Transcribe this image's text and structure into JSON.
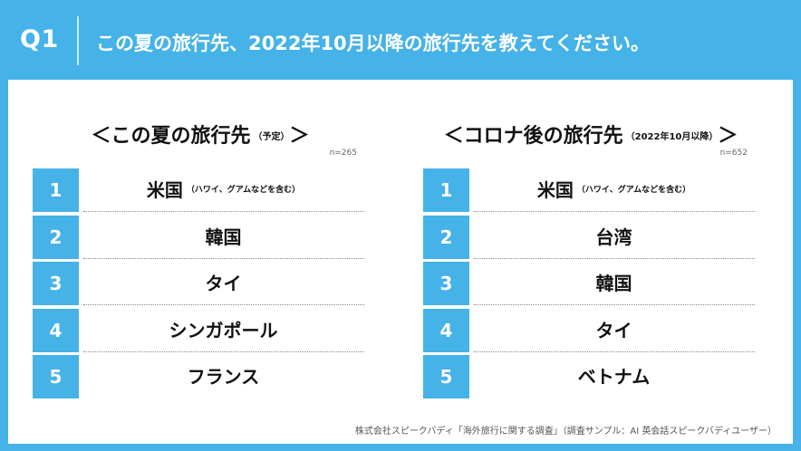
{
  "header": {
    "q_label": "Q1",
    "question": "この夏の旅行先、2022年10月以降の旅行先を教えてください。"
  },
  "left": {
    "title": "＜この夏の旅行先",
    "title_note": "（予定）",
    "title_close": "＞",
    "sample": "n=265",
    "items": [
      {
        "rank": "1",
        "name": "米国",
        "note": "（ハワイ、グアムなどを含む）"
      },
      {
        "rank": "2",
        "name": "韓国",
        "note": ""
      },
      {
        "rank": "3",
        "name": "タイ",
        "note": ""
      },
      {
        "rank": "4",
        "name": "シンガポール",
        "note": ""
      },
      {
        "rank": "5",
        "name": "フランス",
        "note": ""
      }
    ]
  },
  "right": {
    "title": "＜コロナ後の旅行先",
    "title_note": "（2022年10月以降）",
    "title_close": "＞",
    "sample": "n=652",
    "items": [
      {
        "rank": "1",
        "name": "米国",
        "note": "（ハワイ、グアムなどを含む）"
      },
      {
        "rank": "2",
        "name": "台湾",
        "note": ""
      },
      {
        "rank": "3",
        "name": "韓国",
        "note": ""
      },
      {
        "rank": "4",
        "name": "タイ",
        "note": ""
      },
      {
        "rank": "5",
        "name": "ベトナム",
        "note": ""
      }
    ]
  },
  "source": "株式会社スピークバディ「海外旅行に関する調査」（調査サンプル：AI 英会話スピークバディユーザー）",
  "colors": {
    "accent": "#45b2e8",
    "text": "#111111"
  }
}
